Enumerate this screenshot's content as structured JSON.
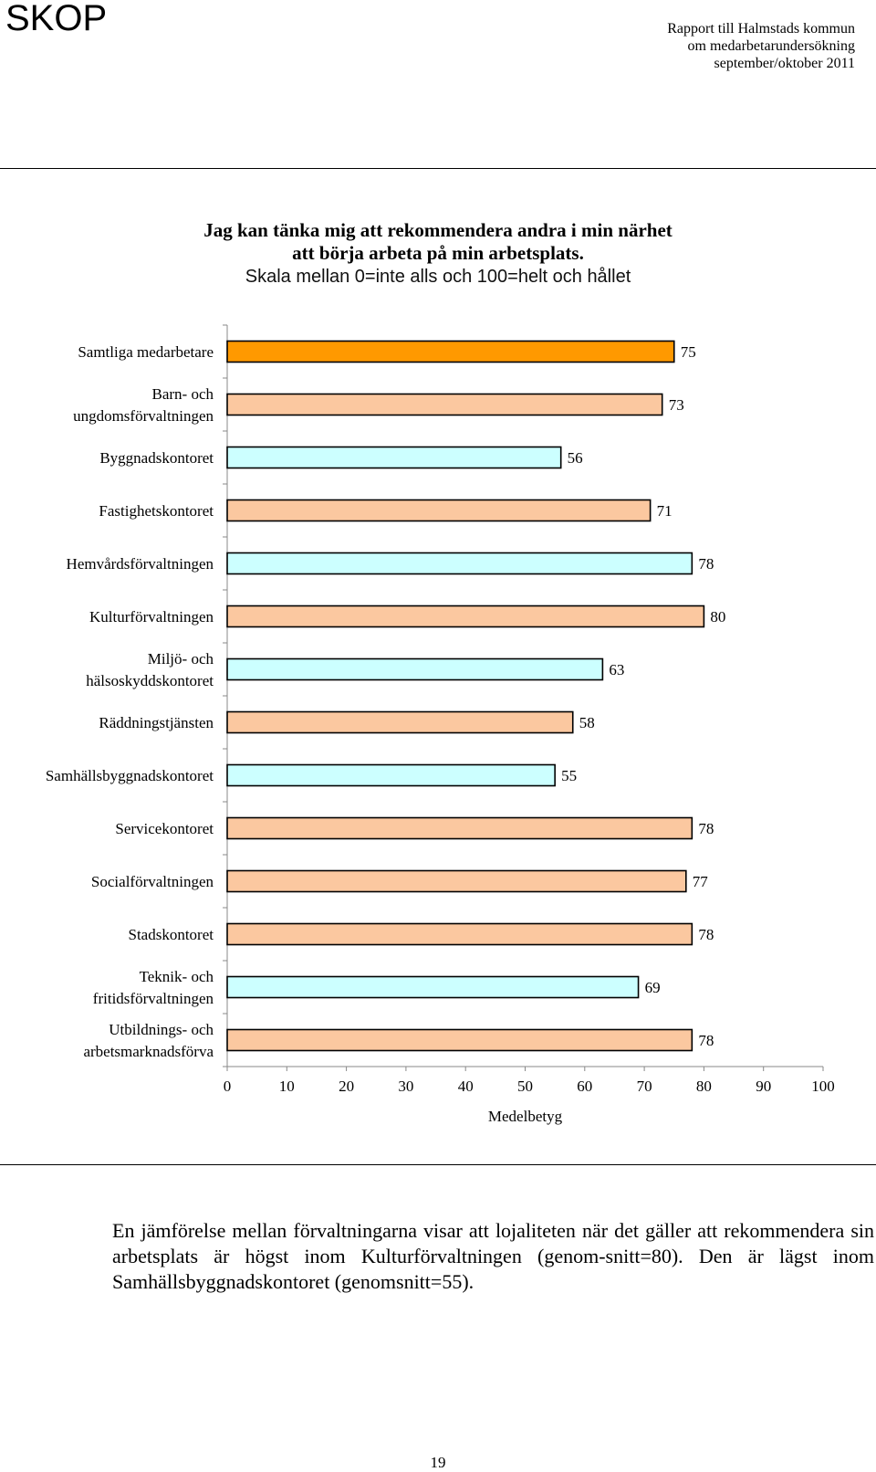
{
  "header": {
    "logo": "SKOP",
    "report_lines": [
      "Rapport till Halmstads kommun",
      "om medarbetarundersökning",
      "september/oktober 2011"
    ]
  },
  "chart_title": {
    "line1": "Jag kan tänka mig att rekommendera andra i min närhet",
    "line2": "att börja arbeta på min arbetsplats.",
    "line3": "Skala mellan 0=inte alls och 100=helt och hållet"
  },
  "chart_data": {
    "type": "bar",
    "orientation": "horizontal",
    "categories": [
      [
        "Samtliga medarbetare"
      ],
      [
        "Barn- och",
        "ungdomsförvaltningen"
      ],
      [
        "Byggnadskontoret"
      ],
      [
        "Fastighetskontoret"
      ],
      [
        "Hemvårdsförvaltningen"
      ],
      [
        "Kulturförvaltningen"
      ],
      [
        "Miljö- och",
        "hälsoskyddskontoret"
      ],
      [
        "Räddningstjänsten"
      ],
      [
        "Samhällsbyggnadskontoret"
      ],
      [
        "Servicekontoret"
      ],
      [
        "Socialförvaltningen"
      ],
      [
        "Stadskontoret"
      ],
      [
        "Teknik- och",
        "fritidsförvaltningen"
      ],
      [
        "Utbildnings- och",
        "arbetsmarknadsförva"
      ]
    ],
    "values": [
      75,
      73,
      56,
      71,
      78,
      80,
      63,
      58,
      55,
      78,
      77,
      78,
      69,
      78
    ],
    "colors": [
      "#ff9900",
      "#fbc8a0",
      "#ccffff",
      "#fbc8a0",
      "#ccffff",
      "#fbc8a0",
      "#ccffff",
      "#fbc8a0",
      "#ccffff",
      "#fbc8a0",
      "#fbc8a0",
      "#fbc8a0",
      "#ccffff",
      "#fbc8a0"
    ],
    "xlim": [
      0,
      100
    ],
    "xticks": [
      0,
      10,
      20,
      30,
      40,
      50,
      60,
      70,
      80,
      90,
      100
    ],
    "xlabel": "Medelbetyg"
  },
  "paragraph": "En jämförelse mellan förvaltningarna visar att lojaliteten när det gäller att rekommendera sin arbetsplats är högst inom Kulturförvaltningen (genom-snitt=80). Den är lägst inom  Samhällsbyggnadskontoret (genomsnitt=55).",
  "page_number": "19"
}
